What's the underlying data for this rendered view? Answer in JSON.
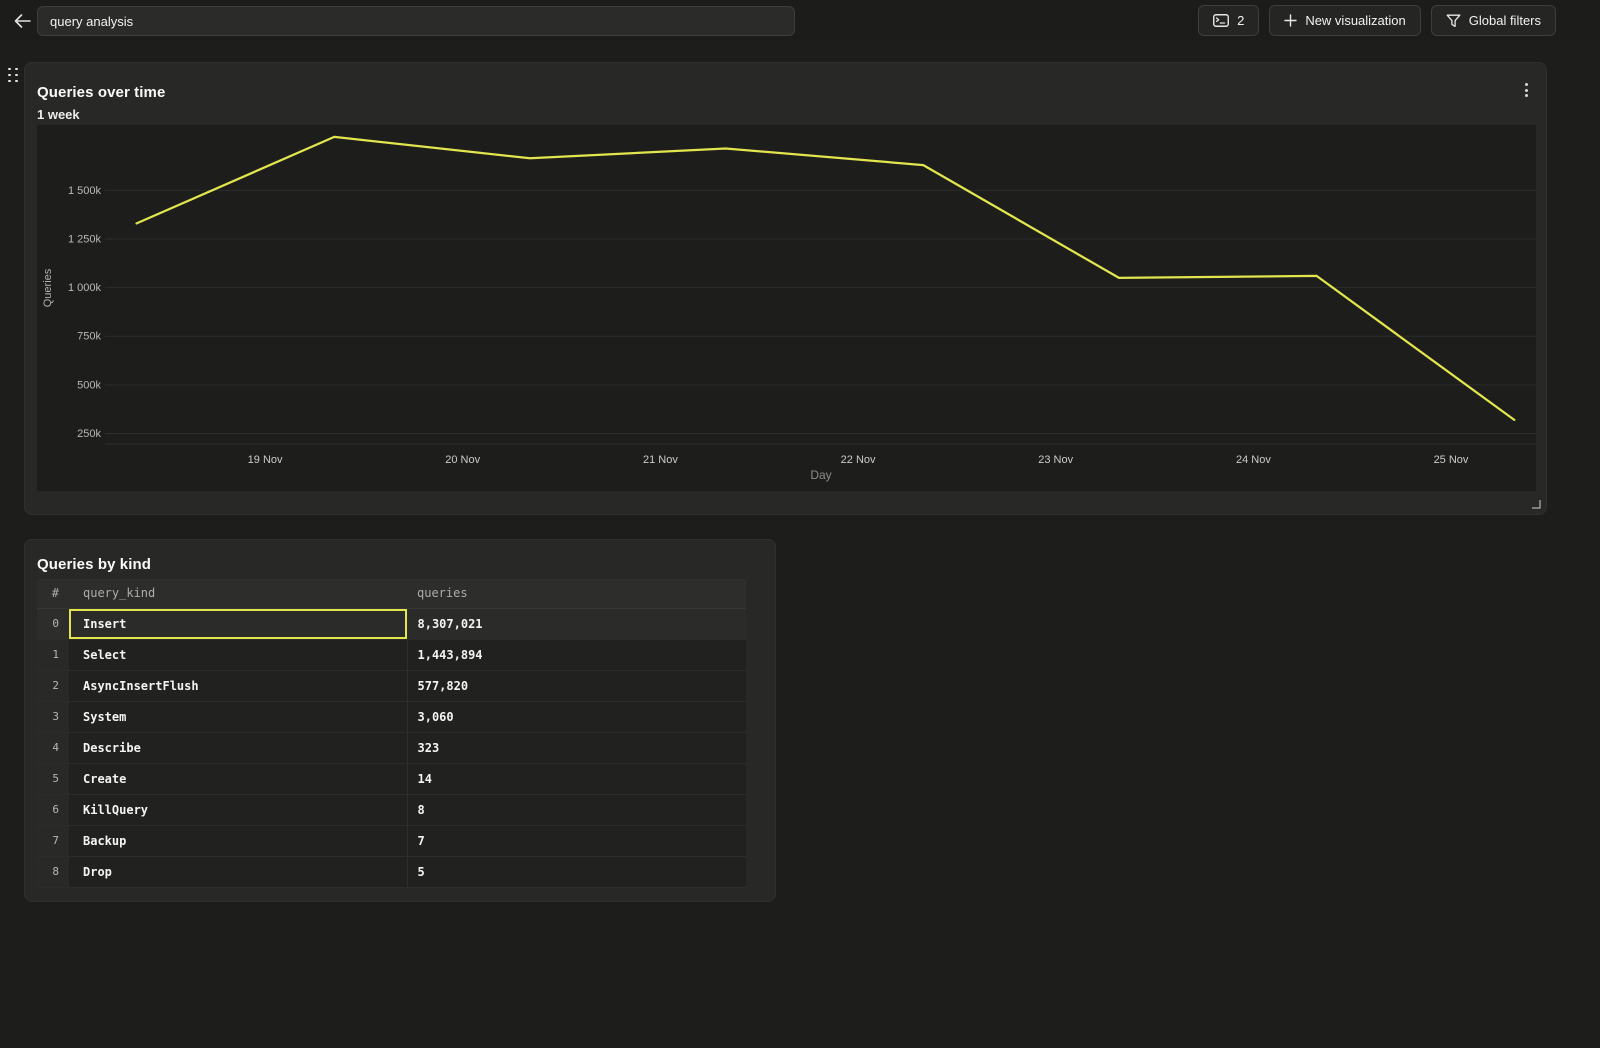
{
  "topbar": {
    "title_value": "query analysis",
    "buttons": {
      "panels_count": {
        "label": "2",
        "icon": "console-icon"
      },
      "new_visualization": {
        "label": "New visualization",
        "icon": "plus-icon"
      },
      "global_filters": {
        "label": "Global filters",
        "icon": "funnel-icon"
      }
    }
  },
  "chart_panel": {
    "title": "Queries over time",
    "subtitle": "1 week"
  },
  "chart_data": {
    "type": "line",
    "title": "Queries over time",
    "subtitle": "1 week",
    "xlabel": "Day",
    "ylabel": "Queries",
    "legend": "none",
    "grid": "horizontal",
    "line_color": "#e2e54d",
    "x_tick_days": [
      19,
      20,
      21,
      22,
      23,
      24,
      25
    ],
    "x_tick_labels": [
      "19 Nov",
      "20 Nov",
      "21 Nov",
      "22 Nov",
      "23 Nov",
      "24 Nov",
      "25 Nov"
    ],
    "y_tick_values_k": [
      250,
      500,
      750,
      1000,
      1250,
      1500
    ],
    "y_tick_labels": [
      "250k",
      "500k",
      "750k",
      "1 000k",
      "1 250k",
      "1 500k"
    ],
    "xlim_days": [
      18.19,
      25.43
    ],
    "ylim_k": [
      196,
      1836
    ],
    "series": [
      {
        "name": "Queries",
        "points_day": [
          18.35,
          19.35,
          20.34,
          21.33,
          22.33,
          23.32,
          24.32,
          25.32
        ],
        "points_queries_k": [
          1330,
          1775,
          1665,
          1715,
          1630,
          1050,
          1060,
          320
        ]
      }
    ]
  },
  "table_panel": {
    "title": "Queries by kind",
    "columns": [
      "#",
      "query_kind",
      "queries"
    ],
    "rows": [
      {
        "index": "0",
        "query_kind": "Insert",
        "queries": "8,307,021"
      },
      {
        "index": "1",
        "query_kind": "Select",
        "queries": "1,443,894"
      },
      {
        "index": "2",
        "query_kind": "AsyncInsertFlush",
        "queries": "577,820"
      },
      {
        "index": "3",
        "query_kind": "System",
        "queries": "3,060"
      },
      {
        "index": "4",
        "query_kind": "Describe",
        "queries": "323"
      },
      {
        "index": "5",
        "query_kind": "Create",
        "queries": "14"
      },
      {
        "index": "6",
        "query_kind": "KillQuery",
        "queries": "8"
      },
      {
        "index": "7",
        "query_kind": "Backup",
        "queries": "7"
      },
      {
        "index": "8",
        "query_kind": "Drop",
        "queries": "5"
      }
    ],
    "selected_cell": {
      "row": 0,
      "column": "query_kind"
    }
  },
  "colors": {
    "page_bg": "#1d1d1c",
    "panel_bg": "#282827",
    "plot_bg": "#1d1d1c",
    "accent_yellow": "#e2e54d",
    "control_bg": "#2b2b29",
    "control_border": "#3e3e3c"
  }
}
